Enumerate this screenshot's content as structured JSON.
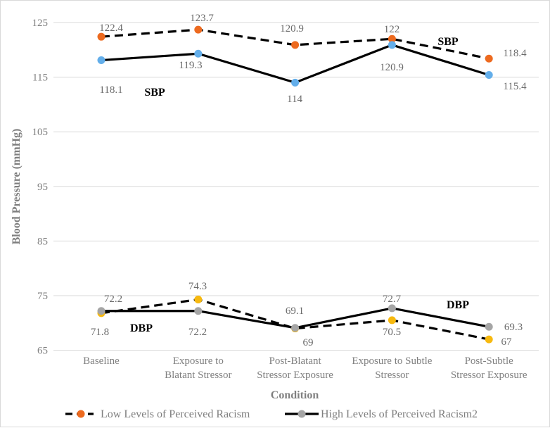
{
  "chart_data": {
    "type": "line",
    "title": "",
    "xlabel": "Condition",
    "ylabel": "Blood Pressure (mmHg)",
    "ylim": [
      65,
      125
    ],
    "yticks": [
      "65",
      "75",
      "85",
      "95",
      "105",
      "115",
      "125"
    ],
    "categories": [
      [
        "Baseline"
      ],
      [
        "Exposure to",
        "Blatant Stressor"
      ],
      [
        "Post-Blatant",
        "Stressor Exposure"
      ],
      [
        "Exposure to Subtle",
        "Stressor"
      ],
      [
        "Post-Subtle",
        "Stressor Exposure"
      ]
    ],
    "grid": true,
    "legend_position": "bottom",
    "legend": [
      "Low Levels of Perceived Racism",
      "High Levels of Perceived Racism2"
    ],
    "annotations": [
      "SBP",
      "SBP",
      "DBP",
      "DBP"
    ],
    "series": [
      {
        "name": "Low Levels of Perceived Racism",
        "measure": "SBP",
        "style": "dashed",
        "color": "#ed6a1f",
        "values": [
          122.4,
          123.7,
          120.9,
          122,
          118.4
        ],
        "labels": [
          "122.4",
          "123.7",
          "120.9",
          "122",
          "118.4"
        ]
      },
      {
        "name": "High Levels of Perceived Racism2",
        "measure": "SBP",
        "style": "solid",
        "color": "#63aeea",
        "values": [
          118.1,
          119.3,
          114,
          120.9,
          115.4
        ],
        "labels": [
          "118.1",
          "119.3",
          "114",
          "120.9",
          "115.4"
        ]
      },
      {
        "name": "Low Levels of Perceived Racism",
        "measure": "DBP",
        "style": "dashed",
        "color": "#f7b90f",
        "values": [
          71.8,
          74.3,
          69,
          70.5,
          67
        ],
        "labels": [
          "71.8",
          "74.3",
          "69",
          "70.5",
          "67"
        ]
      },
      {
        "name": "High Levels of Perceived Racism2",
        "measure": "DBP",
        "style": "solid",
        "color": "#a5a5a5",
        "values": [
          72.2,
          72.2,
          69.1,
          72.7,
          69.3
        ],
        "labels": [
          "72.2",
          "72.2",
          "69.1",
          "72.7",
          "69.3"
        ]
      }
    ]
  }
}
